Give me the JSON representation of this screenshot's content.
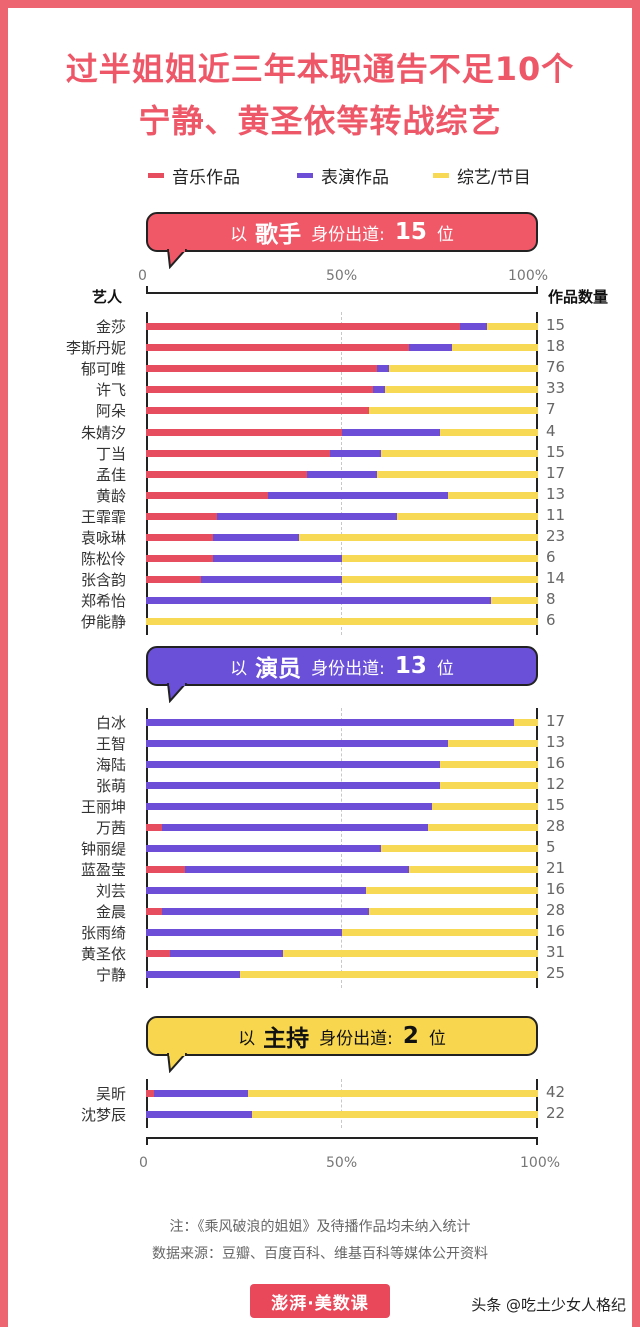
{
  "title": {
    "line1": "过半姐姐近三年本职通告不足10个",
    "line2": "宁静、黄圣依等转战综艺"
  },
  "colors": {
    "music": "#e64d5e",
    "acting": "#6c4fd6",
    "variety": "#f7d955",
    "title": "#ee5767",
    "pill_singer": "#f05868",
    "pill_actor": "#6a4fd8",
    "pill_host": "#f8d74f"
  },
  "legend": {
    "music": "音乐作品",
    "acting": "表演作品",
    "variety": "综艺/节目"
  },
  "headers": {
    "artist": "艺人",
    "count": "作品数量"
  },
  "axis": {
    "ticks": [
      "0",
      "50%",
      "100%"
    ]
  },
  "chart_data": {
    "type": "bar",
    "orientation": "horizontal-stacked-100%",
    "series_names": [
      "音乐作品",
      "表演作品",
      "综艺/节目"
    ],
    "xlim": [
      0,
      100
    ],
    "groups": [
      {
        "pill": {
          "prefix": "以",
          "role": "歌手",
          "middle": "身份出道:",
          "number": "15",
          "suffix": "位"
        },
        "rows": [
          {
            "name": "金莎",
            "music": 80,
            "acting": 7,
            "variety": 13,
            "count": "15"
          },
          {
            "name": "李斯丹妮",
            "music": 67,
            "acting": 11,
            "variety": 22,
            "count": "18"
          },
          {
            "name": "郁可唯",
            "music": 59,
            "acting": 3,
            "variety": 38,
            "count": "76"
          },
          {
            "name": "许飞",
            "music": 58,
            "acting": 3,
            "variety": 39,
            "count": "33"
          },
          {
            "name": "阿朵",
            "music": 57,
            "acting": 0,
            "variety": 43,
            "count": "7"
          },
          {
            "name": "朱婧汐",
            "music": 50,
            "acting": 25,
            "variety": 25,
            "count": "4"
          },
          {
            "name": "丁当",
            "music": 47,
            "acting": 13,
            "variety": 40,
            "count": "15"
          },
          {
            "name": "孟佳",
            "music": 41,
            "acting": 18,
            "variety": 41,
            "count": "17"
          },
          {
            "name": "黄龄",
            "music": 31,
            "acting": 46,
            "variety": 23,
            "count": "13"
          },
          {
            "name": "王霏霏",
            "music": 18,
            "acting": 46,
            "variety": 36,
            "count": "11"
          },
          {
            "name": "袁咏琳",
            "music": 17,
            "acting": 22,
            "variety": 61,
            "count": "23"
          },
          {
            "name": "陈松伶",
            "music": 17,
            "acting": 33,
            "variety": 50,
            "count": "6"
          },
          {
            "name": "张含韵",
            "music": 14,
            "acting": 36,
            "variety": 50,
            "count": "14"
          },
          {
            "name": "郑希怡",
            "music": 0,
            "acting": 88,
            "variety": 12,
            "count": "8"
          },
          {
            "name": "伊能静",
            "music": 0,
            "acting": 0,
            "variety": 100,
            "count": "6"
          }
        ]
      },
      {
        "pill": {
          "prefix": "以",
          "role": "演员",
          "middle": "身份出道:",
          "number": "13",
          "suffix": "位"
        },
        "rows": [
          {
            "name": "白冰",
            "music": 0,
            "acting": 94,
            "variety": 6,
            "count": "17"
          },
          {
            "name": "王智",
            "music": 0,
            "acting": 77,
            "variety": 23,
            "count": "13"
          },
          {
            "name": "海陆",
            "music": 0,
            "acting": 75,
            "variety": 25,
            "count": "16"
          },
          {
            "name": "张萌",
            "music": 0,
            "acting": 75,
            "variety": 25,
            "count": "12"
          },
          {
            "name": "王丽坤",
            "music": 0,
            "acting": 73,
            "variety": 27,
            "count": "15"
          },
          {
            "name": "万茜",
            "music": 4,
            "acting": 68,
            "variety": 28,
            "count": "28"
          },
          {
            "name": "钟丽缇",
            "music": 0,
            "acting": 60,
            "variety": 40,
            "count": "5"
          },
          {
            "name": "蓝盈莹",
            "music": 10,
            "acting": 57,
            "variety": 33,
            "count": "21"
          },
          {
            "name": "刘芸",
            "music": 0,
            "acting": 56,
            "variety": 44,
            "count": "16"
          },
          {
            "name": "金晨",
            "music": 4,
            "acting": 53,
            "variety": 43,
            "count": "28"
          },
          {
            "name": "张雨绮",
            "music": 0,
            "acting": 50,
            "variety": 50,
            "count": "16"
          },
          {
            "name": "黄圣依",
            "music": 6,
            "acting": 29,
            "variety": 65,
            "count": "31"
          },
          {
            "name": "宁静",
            "music": 0,
            "acting": 24,
            "variety": 76,
            "count": "25"
          }
        ]
      },
      {
        "pill": {
          "prefix": "以",
          "role": "主持",
          "middle": "身份出道:",
          "number": "2",
          "suffix": "位"
        },
        "rows": [
          {
            "name": "吴昕",
            "music": 2,
            "acting": 24,
            "variety": 74,
            "count": "42"
          },
          {
            "name": "沈梦辰",
            "music": 0,
            "acting": 27,
            "variety": 73,
            "count": "22"
          }
        ]
      }
    ]
  },
  "footnotes": {
    "note": "注：《乘风破浪的姐姐》及待播作品均未纳入统计",
    "source": "数据来源：豆瓣、百度百科、维基百科等媒体公开资料"
  },
  "logo": "澎湃·美数课",
  "watermark": "头条 @吃土少女人格纪"
}
